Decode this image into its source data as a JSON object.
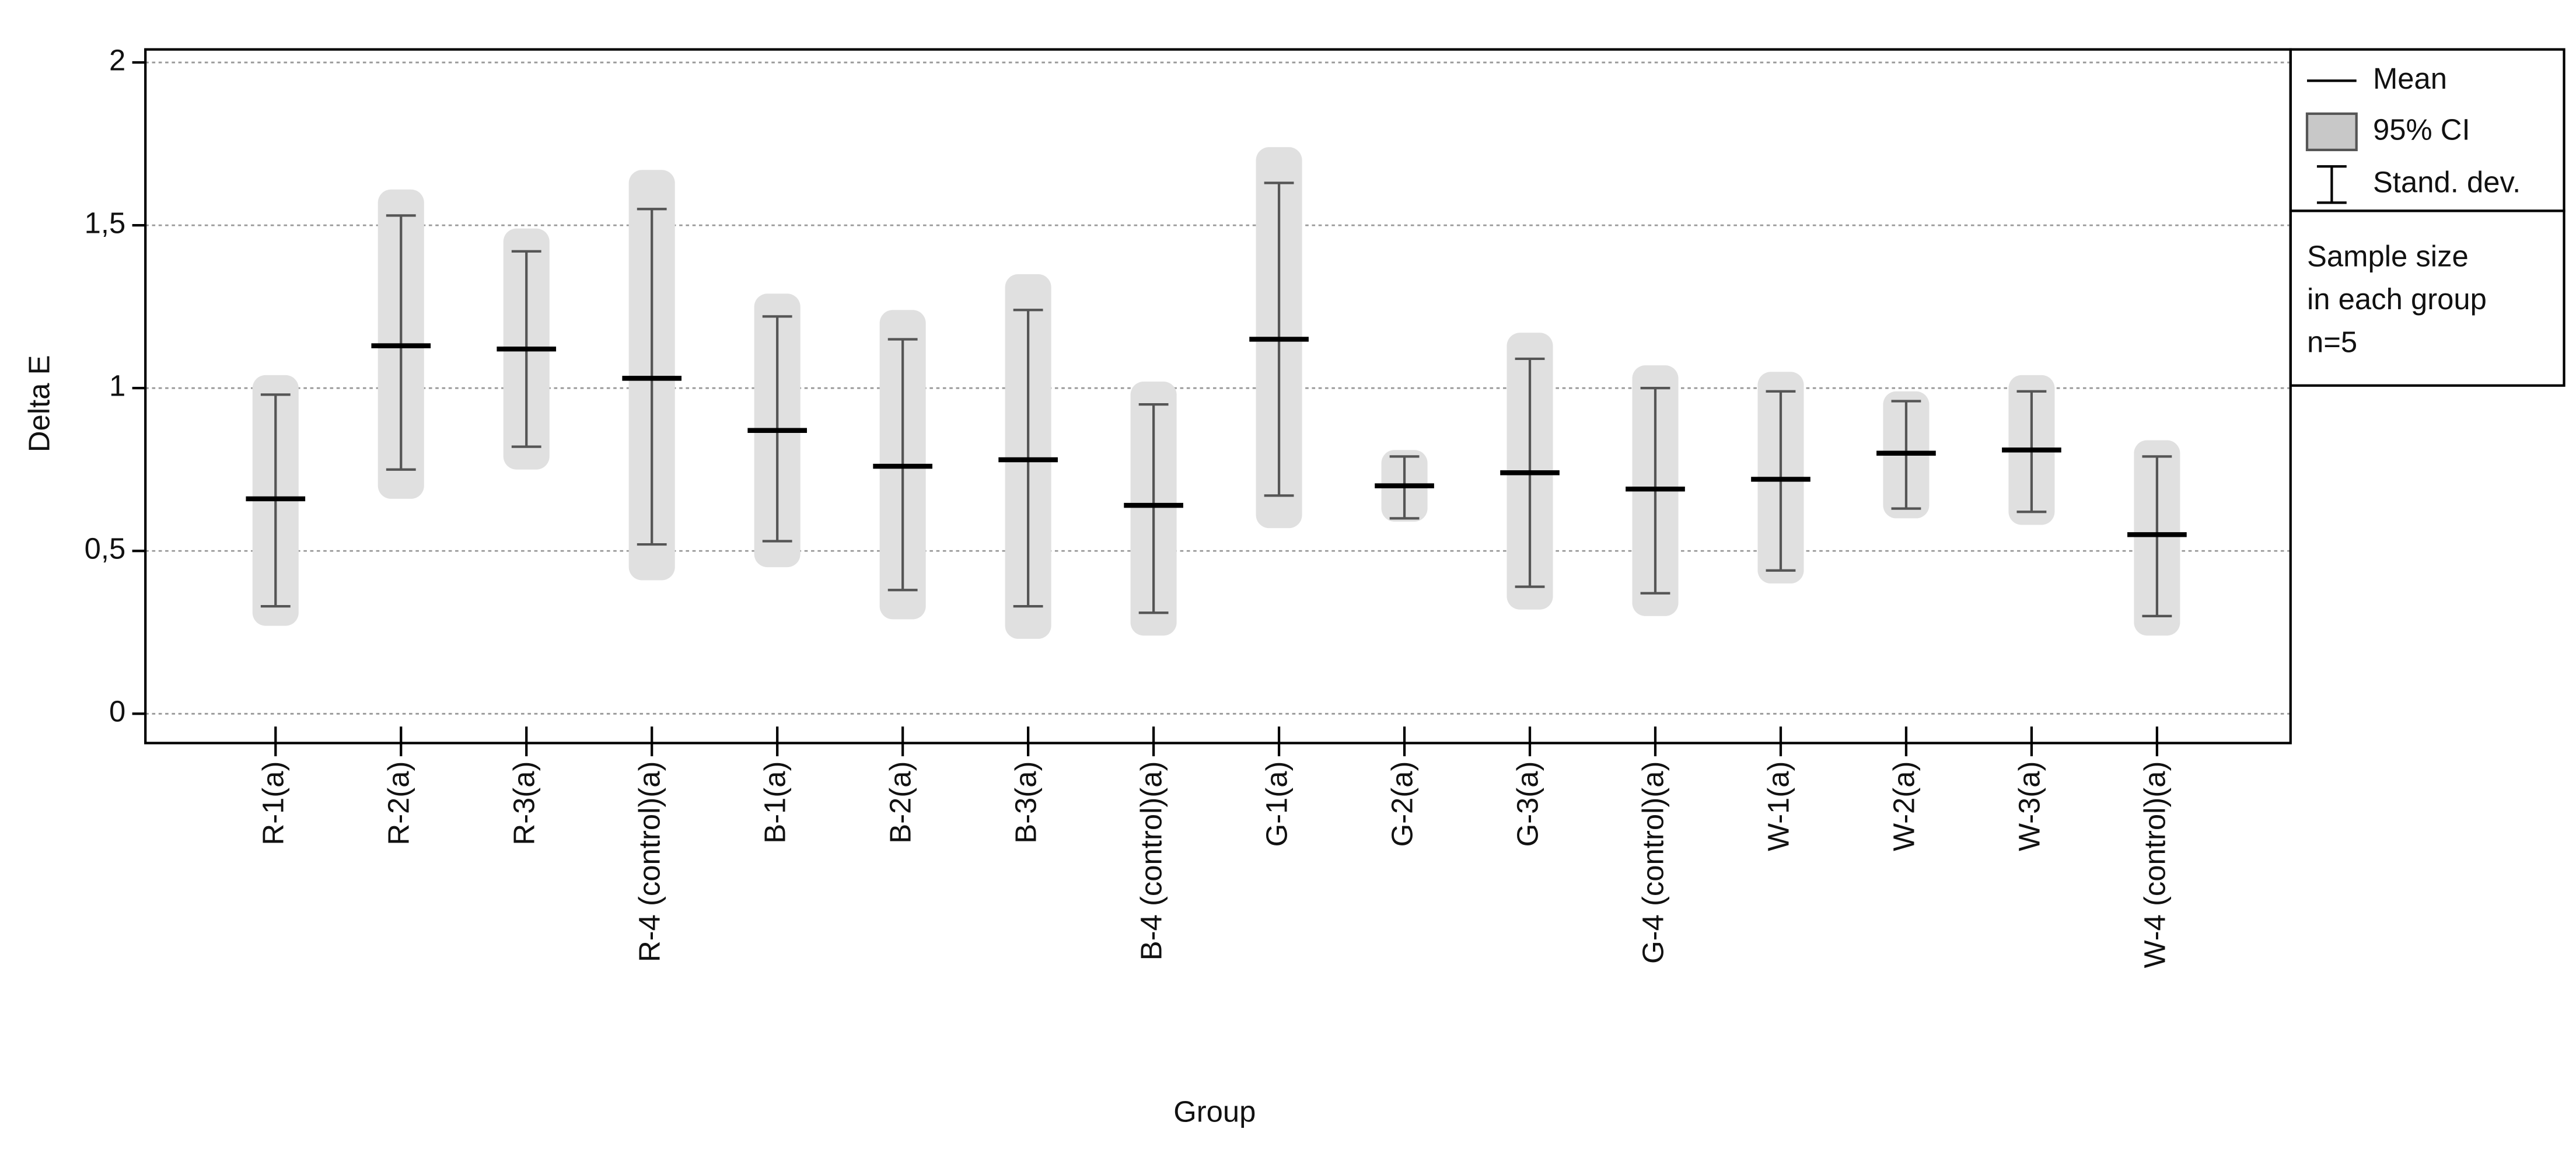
{
  "chart_data": {
    "type": "errorbar",
    "y_label": "Delta E",
    "x_label": "Group",
    "categories": [
      "R-1(a)",
      "R-2(a)",
      "R-3(a)",
      "R-4 (control)(a)",
      "B-1(a)",
      "B-2(a)",
      "B-3(a)",
      "B-4 (control)(a)",
      "G-1(a)",
      "G-2(a)",
      "G-3(a)",
      "G-4 (control)(a)",
      "W-1(a)",
      "W-2(a)",
      "W-3(a)",
      "W-4 (control)(a)"
    ],
    "mean": [
      0.66,
      1.13,
      1.12,
      1.03,
      0.87,
      0.76,
      0.78,
      0.64,
      1.15,
      0.7,
      0.74,
      0.69,
      0.72,
      0.8,
      0.81,
      0.55
    ],
    "ci_low": [
      0.27,
      0.66,
      0.75,
      0.41,
      0.45,
      0.29,
      0.23,
      0.24,
      0.57,
      0.59,
      0.32,
      0.3,
      0.4,
      0.6,
      0.58,
      0.24
    ],
    "ci_high": [
      1.04,
      1.61,
      1.49,
      1.67,
      1.29,
      1.24,
      1.35,
      1.02,
      1.74,
      0.81,
      1.17,
      1.07,
      1.05,
      0.99,
      1.04,
      0.84
    ],
    "sd_low": [
      0.33,
      0.75,
      0.82,
      0.52,
      0.53,
      0.38,
      0.33,
      0.31,
      0.67,
      0.6,
      0.39,
      0.37,
      0.44,
      0.63,
      0.62,
      0.3
    ],
    "sd_high": [
      0.98,
      1.53,
      1.42,
      1.55,
      1.22,
      1.15,
      1.24,
      0.95,
      1.63,
      0.79,
      1.09,
      1.0,
      0.99,
      0.96,
      0.99,
      0.79
    ],
    "ylim": [
      -0.09,
      2.04
    ],
    "yticks": [
      0,
      {
        "value": 0.5,
        "label": "0,5"
      },
      1,
      {
        "value": 1.5,
        "label": "1,5"
      },
      2
    ],
    "grid": true,
    "ci_color": "#e0e0e0",
    "sd_color": "#555555",
    "mean_color": "#000000",
    "legend": [
      "Mean",
      "95% CI",
      "Stand. dev."
    ],
    "note": [
      "Sample size",
      "in each group",
      "n=5"
    ]
  }
}
